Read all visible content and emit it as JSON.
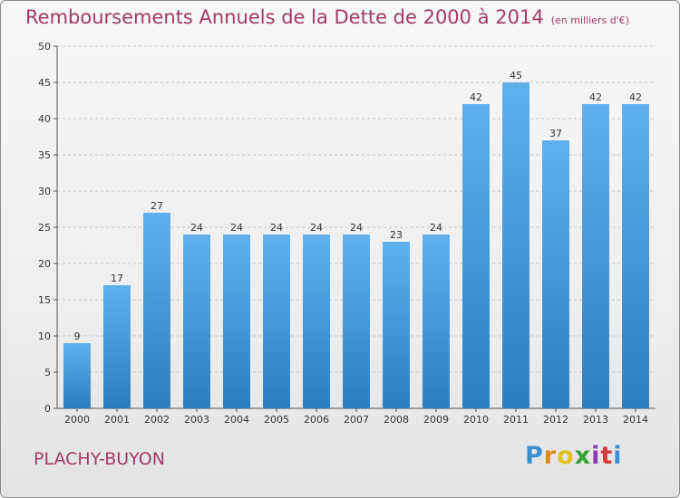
{
  "header": {
    "title": "Remboursements Annuels de la Dette de 2000 à 2014",
    "unit": "(en milliers d'€)"
  },
  "footer": {
    "commune": "PLACHY-BUYON",
    "logo_letters": [
      "P",
      "r",
      "o",
      "x",
      "i",
      "t",
      "i"
    ],
    "logo_colors": [
      "#3a8fd0",
      "#e08a1e",
      "#e0c21e",
      "#3aa03a",
      "#8a3ab0",
      "#d03a3a",
      "#3a8fd0"
    ]
  },
  "colors": {
    "bar_top": "#5fb0ec",
    "bar_bottom": "#2c7dbf",
    "title": "#a23a66",
    "grid": "#c8c8c8"
  },
  "chart_data": {
    "type": "bar",
    "categories": [
      "2000",
      "2001",
      "2002",
      "2003",
      "2004",
      "2005",
      "2006",
      "2007",
      "2008",
      "2009",
      "2010",
      "2011",
      "2012",
      "2013",
      "2014"
    ],
    "values": [
      9,
      17,
      27,
      24,
      24,
      24,
      24,
      24,
      23,
      24,
      42,
      45,
      37,
      42,
      42
    ],
    "ylim": [
      0,
      50
    ],
    "yticks": [
      0,
      5,
      10,
      15,
      20,
      25,
      30,
      35,
      40,
      45,
      50
    ],
    "grid": true,
    "data_labels": true
  }
}
